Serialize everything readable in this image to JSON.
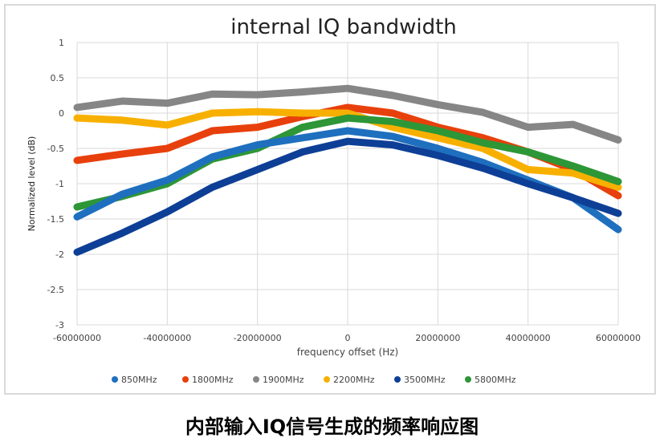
{
  "chart_data": {
    "type": "line",
    "title": "internal IQ bandwidth",
    "xlabel": "frequency offset (Hz)",
    "ylabel": "Normalized level (dB)",
    "xlim": [
      -60000000,
      60000000
    ],
    "ylim": [
      -3,
      1
    ],
    "xticks": [
      -60000000,
      -40000000,
      -20000000,
      0,
      20000000,
      40000000,
      60000000
    ],
    "xtick_labels": [
      "-60000000",
      "-40000000",
      "-20000000",
      "0",
      "20000000",
      "40000000",
      "60000000"
    ],
    "yticks": [
      1,
      0.5,
      0,
      -0.5,
      -1,
      -1.5,
      -2,
      -2.5,
      -3
    ],
    "ytick_labels": [
      "1",
      "0.5",
      "0",
      "-0.5",
      "-1",
      "-1.5",
      "-2",
      "-2.5",
      "-3"
    ],
    "grid": true,
    "legend": "bottom",
    "x": [
      -60000000,
      -50000000,
      -40000000,
      -30000000,
      -20000000,
      -10000000,
      0,
      10000000,
      20000000,
      30000000,
      40000000,
      50000000,
      60000000
    ],
    "series": [
      {
        "name": "850MHz",
        "color": "#1f6fbf",
        "values": [
          -1.47,
          -1.15,
          -0.95,
          -0.62,
          -0.45,
          -0.35,
          -0.25,
          -0.33,
          -0.5,
          -0.7,
          -0.95,
          -1.2,
          -1.65
        ]
      },
      {
        "name": "1800MHz",
        "color": "#e8400c",
        "values": [
          -0.67,
          -0.58,
          -0.5,
          -0.25,
          -0.2,
          -0.05,
          0.08,
          0.0,
          -0.2,
          -0.35,
          -0.55,
          -0.8,
          -1.17
        ]
      },
      {
        "name": "1900MHz",
        "color": "#868686",
        "values": [
          0.08,
          0.17,
          0.14,
          0.27,
          0.26,
          0.3,
          0.35,
          0.25,
          0.12,
          0.01,
          -0.2,
          -0.16,
          -0.38
        ]
      },
      {
        "name": "2200MHz",
        "color": "#f8b000",
        "values": [
          -0.07,
          -0.1,
          -0.17,
          0.0,
          0.02,
          0.0,
          0.0,
          -0.2,
          -0.35,
          -0.5,
          -0.8,
          -0.85,
          -1.05
        ]
      },
      {
        "name": "3500MHz",
        "color": "#0e3f96",
        "values": [
          -1.97,
          -1.7,
          -1.4,
          -1.05,
          -0.8,
          -0.55,
          -0.4,
          -0.45,
          -0.6,
          -0.78,
          -1.0,
          -1.2,
          -1.42
        ]
      },
      {
        "name": "5800MHz",
        "color": "#2d9637",
        "values": [
          -1.33,
          -1.18,
          -1.0,
          -0.65,
          -0.5,
          -0.2,
          -0.07,
          -0.12,
          -0.25,
          -0.42,
          -0.55,
          -0.75,
          -0.97
        ]
      }
    ]
  },
  "caption": "内部输入IQ信号生成的频率响应图"
}
